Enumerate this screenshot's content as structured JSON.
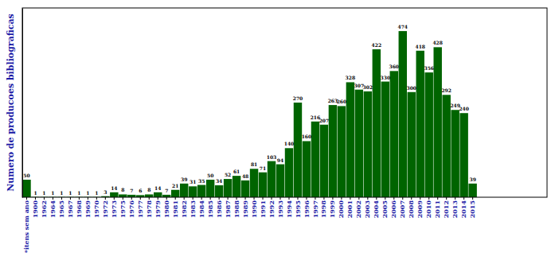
{
  "chart_data": {
    "type": "bar",
    "y_label": "Numero de producoes bibliograficas",
    "categories": [
      "*itens sem ano",
      "1900",
      "1962",
      "1964",
      "1965",
      "1967",
      "1968",
      "1969",
      "1970",
      "1972",
      "1973",
      "1975",
      "1976",
      "1977",
      "1978",
      "1979",
      "1980",
      "1981",
      "1982",
      "1983",
      "1984",
      "1985",
      "1986",
      "1987",
      "1988",
      "1989",
      "1990",
      "1991",
      "1992",
      "1993",
      "1994",
      "1995",
      "1996",
      "1997",
      "1998",
      "1999",
      "2000",
      "2001",
      "2002",
      "2003",
      "2004",
      "2005",
      "2006",
      "2007",
      "2008",
      "2009",
      "2010",
      "2011",
      "2012",
      "2013",
      "2014",
      "2015"
    ],
    "values": [
      50,
      1,
      1,
      1,
      1,
      1,
      1,
      1,
      1,
      3,
      14,
      8,
      7,
      6,
      8,
      14,
      7,
      21,
      39,
      31,
      35,
      50,
      34,
      52,
      61,
      48,
      81,
      71,
      103,
      94,
      140,
      270,
      160,
      216,
      207,
      263,
      260,
      328,
      307,
      302,
      422,
      330,
      360,
      474,
      300,
      418,
      356,
      428,
      292,
      249,
      240,
      39
    ],
    "color": "#006400",
    "ylim": [
      0,
      540
    ],
    "data_labels": true,
    "tick_labels": "x",
    "grid": false
  }
}
